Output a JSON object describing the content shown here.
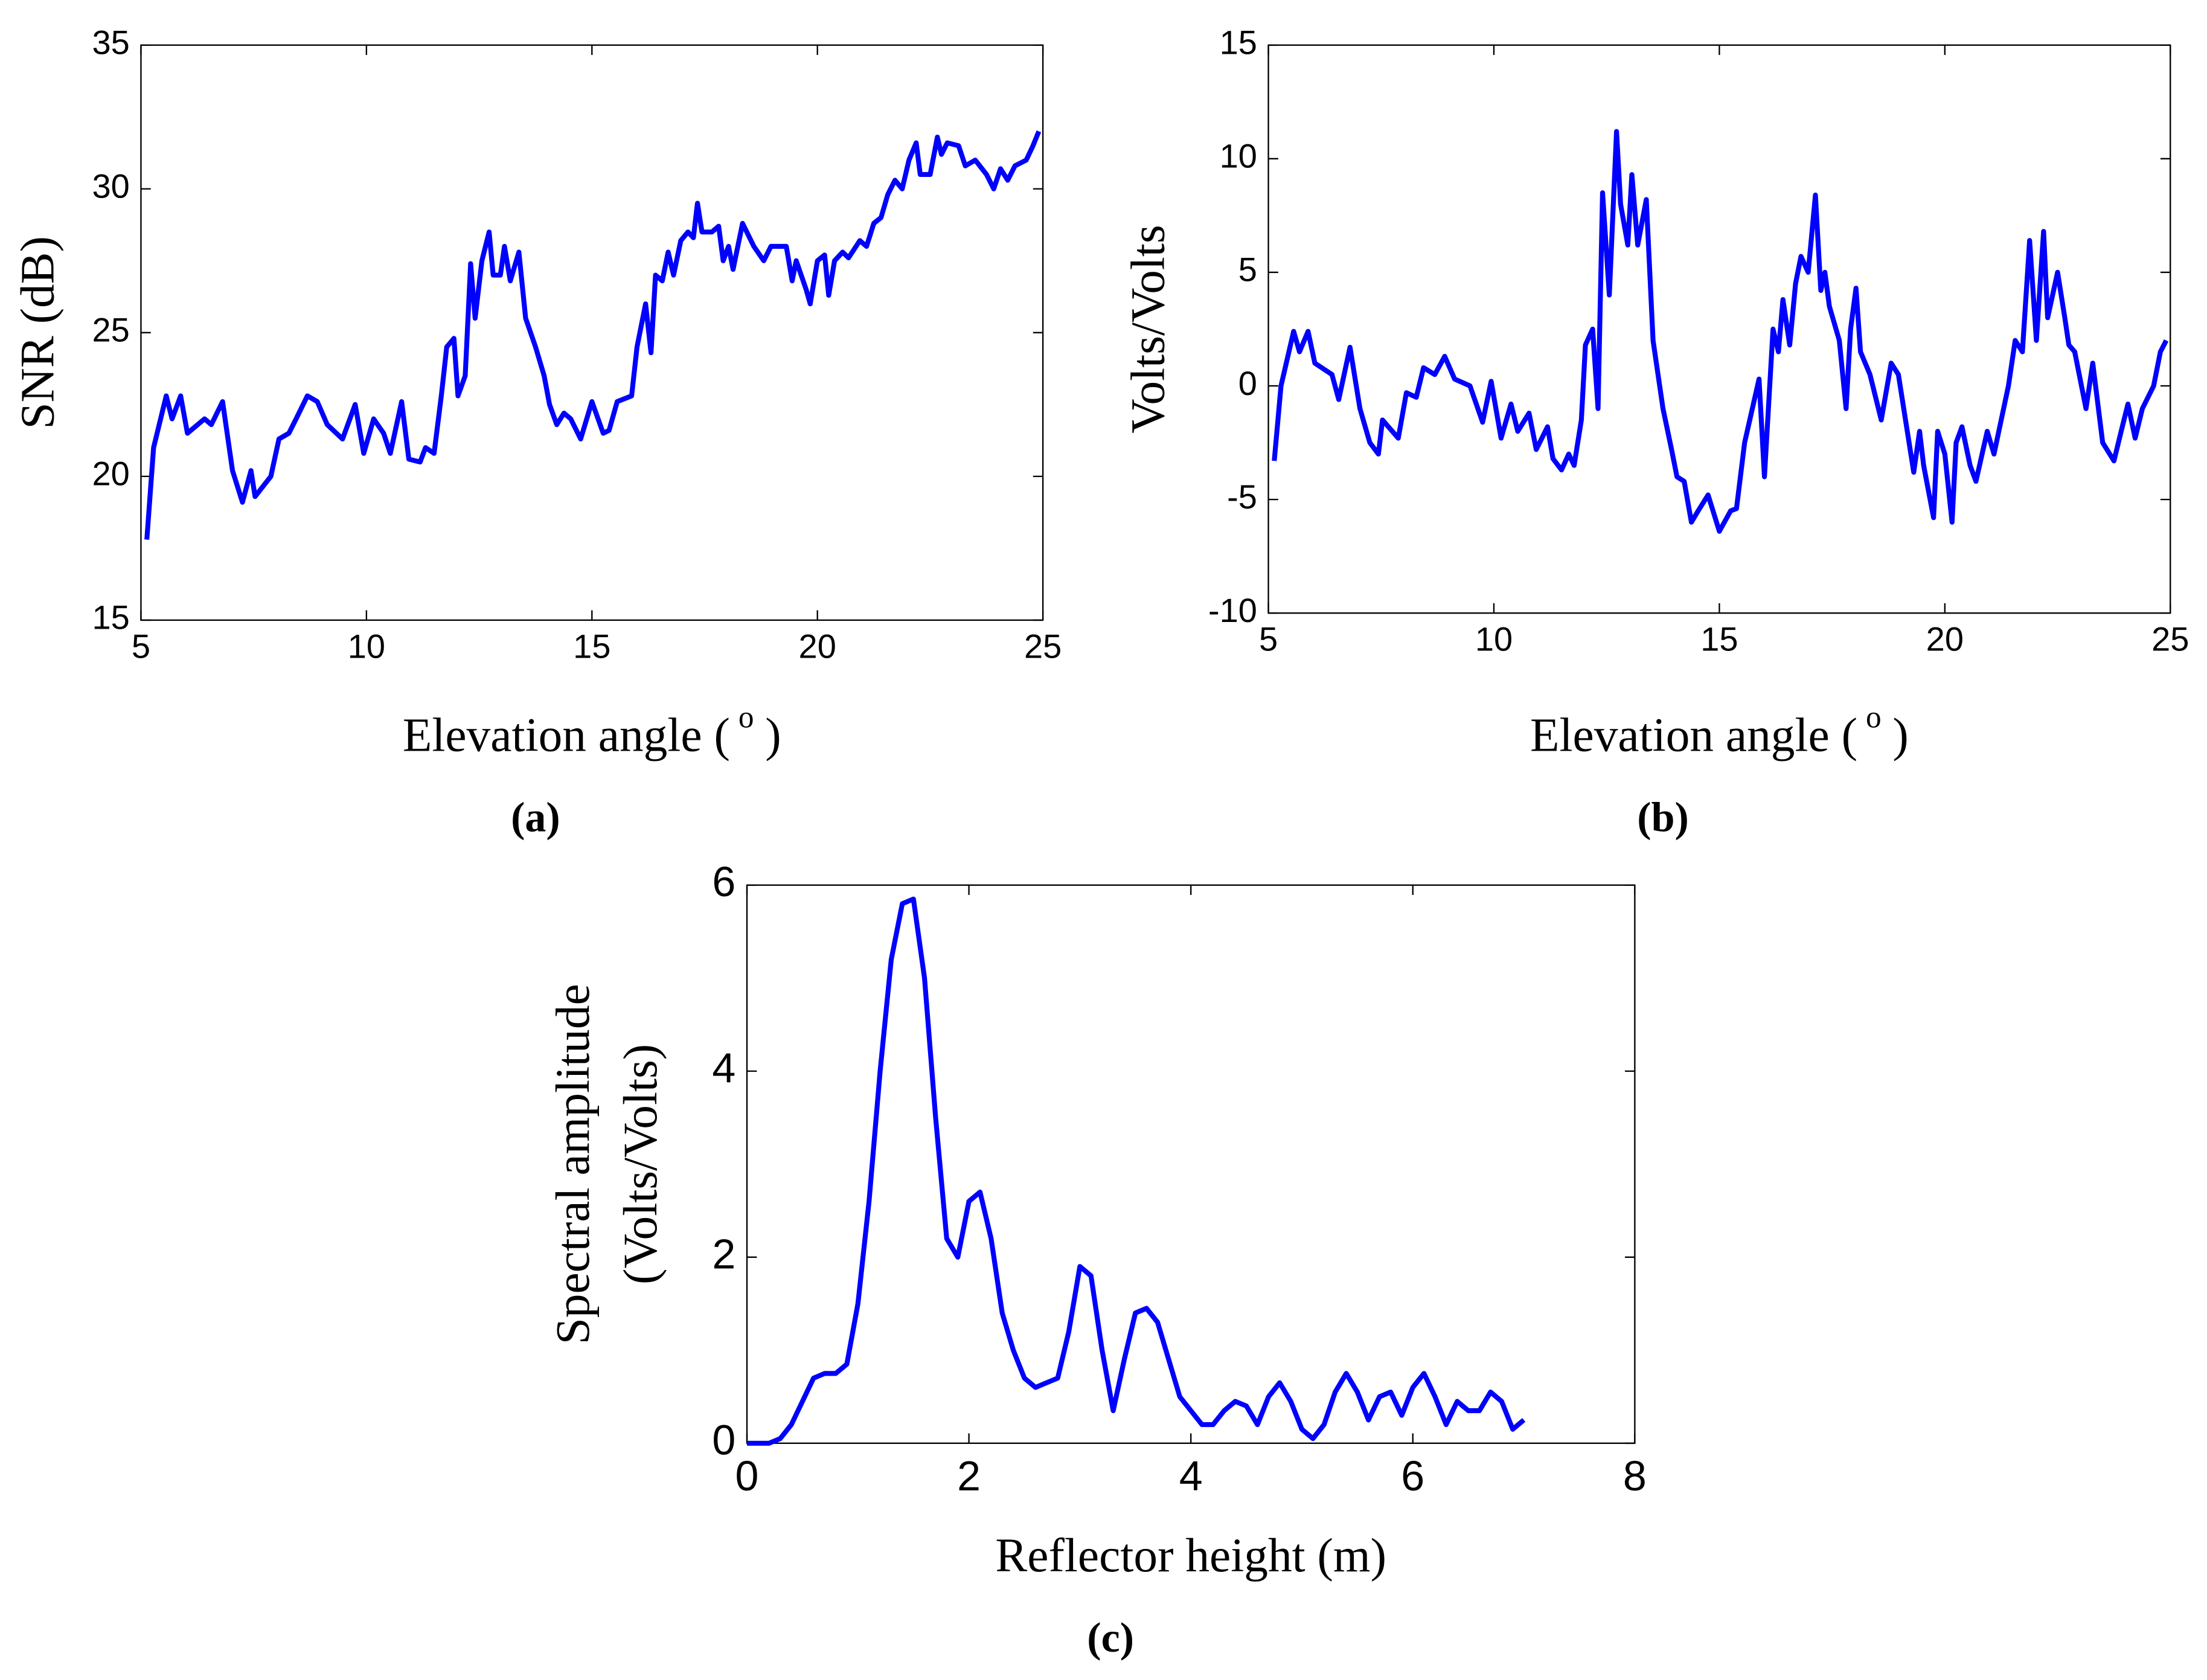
{
  "chart_data": [
    {
      "type": "line",
      "caption": "(a)",
      "y_label": "SNR (dB)",
      "x_label": [
        "Elevation angle (",
        "o",
        ")"
      ],
      "color": "#0000ff",
      "xlim": [
        5,
        25
      ],
      "xticks": [
        5,
        10,
        15,
        20,
        25
      ],
      "ylim": [
        15,
        35
      ],
      "yticks": [
        15,
        20,
        25,
        30,
        35
      ],
      "x": [
        5.13,
        5.28,
        5.56,
        5.69,
        5.88,
        6.03,
        6.41,
        6.56,
        6.81,
        7.03,
        7.25,
        7.44,
        7.53,
        7.88,
        8.06,
        8.28,
        8.44,
        8.69,
        8.91,
        9.13,
        9.47,
        9.75,
        9.94,
        10.16,
        10.38,
        10.53,
        10.78,
        10.94,
        11.19,
        11.31,
        11.5,
        11.66,
        11.78,
        11.94,
        12.03,
        12.19,
        12.31,
        12.41,
        12.56,
        12.72,
        12.81,
        12.97,
        13.06,
        13.19,
        13.38,
        13.53,
        13.75,
        13.94,
        14.06,
        14.22,
        14.38,
        14.53,
        14.75,
        15.0,
        15.25,
        15.38,
        15.56,
        15.88,
        16.0,
        16.19,
        16.31,
        16.41,
        16.56,
        16.69,
        16.81,
        16.97,
        17.13,
        17.25,
        17.34,
        17.44,
        17.66,
        17.81,
        17.91,
        18.03,
        18.13,
        18.34,
        18.59,
        18.81,
        18.97,
        19.31,
        19.44,
        19.53,
        19.75,
        19.84,
        20.0,
        20.16,
        20.25,
        20.38,
        20.56,
        20.69,
        20.94,
        21.09,
        21.25,
        21.41,
        21.56,
        21.72,
        21.88,
        22.03,
        22.19,
        22.28,
        22.5,
        22.66,
        22.75,
        22.88,
        23.13,
        23.28,
        23.5,
        23.75,
        23.91,
        24.06,
        24.22,
        24.38,
        24.63,
        24.78,
        24.91
      ],
      "values": [
        17.8,
        21,
        22.8,
        22,
        22.8,
        21.5,
        22,
        21.8,
        22.6,
        20.2,
        19.1,
        20.2,
        19.3,
        20,
        21.3,
        21.5,
        22,
        22.8,
        22.6,
        21.8,
        21.3,
        22.5,
        20.8,
        22,
        21.5,
        20.8,
        22.6,
        20.6,
        20.5,
        21,
        20.8,
        22.8,
        24.5,
        24.8,
        22.8,
        23.5,
        27.4,
        25.5,
        27.5,
        28.5,
        27,
        27,
        28,
        26.8,
        27.8,
        25.5,
        24.5,
        23.5,
        22.5,
        21.8,
        22.2,
        22,
        21.3,
        22.6,
        21.5,
        21.6,
        22.6,
        22.8,
        24.5,
        26,
        24.3,
        27,
        26.8,
        27.8,
        27,
        28.2,
        28.5,
        28.3,
        29.5,
        28.5,
        28.5,
        28.7,
        27.5,
        28,
        27.2,
        28.8,
        28,
        27.5,
        28,
        28,
        26.8,
        27.5,
        26.5,
        26,
        27.5,
        27.7,
        26.3,
        27.5,
        27.8,
        27.6,
        28.2,
        28,
        28.8,
        29,
        29.8,
        30.3,
        30,
        31,
        31.6,
        30.5,
        30.5,
        31.8,
        31.2,
        31.6,
        31.5,
        30.8,
        31,
        30.5,
        30,
        30.7,
        30.3,
        30.8,
        31,
        31.5,
        32
      ]
    },
    {
      "type": "line",
      "caption": "(b)",
      "y_label": "Volts/Volts",
      "x_label": [
        "Elevation angle (",
        "o",
        ")"
      ],
      "color": "#0000ff",
      "xlim": [
        5,
        25
      ],
      "xticks": [
        5,
        10,
        15,
        20,
        25
      ],
      "ylim": [
        -10,
        15
      ],
      "yticks": [
        -10,
        -5,
        0,
        5,
        10,
        15
      ],
      "x": [
        5.13,
        5.28,
        5.56,
        5.69,
        5.88,
        6.03,
        6.41,
        6.56,
        6.81,
        7.03,
        7.25,
        7.44,
        7.53,
        7.88,
        8.06,
        8.28,
        8.44,
        8.69,
        8.91,
        9.13,
        9.47,
        9.75,
        9.94,
        10.16,
        10.38,
        10.53,
        10.78,
        10.94,
        11.19,
        11.31,
        11.5,
        11.66,
        11.78,
        11.94,
        12.03,
        12.19,
        12.31,
        12.41,
        12.56,
        12.72,
        12.81,
        12.97,
        13.06,
        13.19,
        13.38,
        13.53,
        13.75,
        13.94,
        14.06,
        14.22,
        14.38,
        14.53,
        14.75,
        15.0,
        15.25,
        15.38,
        15.56,
        15.88,
        16.0,
        16.19,
        16.31,
        16.41,
        16.56,
        16.69,
        16.81,
        16.97,
        17.13,
        17.25,
        17.34,
        17.44,
        17.66,
        17.81,
        17.91,
        18.03,
        18.13,
        18.34,
        18.59,
        18.81,
        18.97,
        19.31,
        19.44,
        19.53,
        19.75,
        19.84,
        20.0,
        20.16,
        20.25,
        20.38,
        20.56,
        20.69,
        20.94,
        21.09,
        21.25,
        21.41,
        21.56,
        21.72,
        21.88,
        22.03,
        22.19,
        22.28,
        22.5,
        22.66,
        22.75,
        22.88,
        23.13,
        23.28,
        23.5,
        23.75,
        23.91,
        24.06,
        24.22,
        24.38,
        24.63,
        24.78,
        24.91
      ],
      "values": [
        -3.3,
        0,
        2.4,
        1.5,
        2.4,
        1,
        0.5,
        -0.6,
        1.7,
        -1,
        -2.5,
        -3,
        -1.5,
        -2.3,
        -0.3,
        -0.5,
        0.8,
        0.5,
        1.3,
        0.3,
        0,
        -1.6,
        0.2,
        -2.3,
        -0.8,
        -2,
        -1.2,
        -2.8,
        -1.8,
        -3.2,
        -3.7,
        -3,
        -3.5,
        -1.5,
        1.8,
        2.5,
        -1,
        8.5,
        4,
        11.2,
        8,
        6.2,
        9.3,
        6.2,
        8.2,
        2,
        -1,
        -2.8,
        -4,
        -4.2,
        -6,
        -5.5,
        -4.8,
        -6.4,
        -5.5,
        -5.4,
        -2.5,
        0.3,
        -4,
        2.5,
        1.5,
        3.8,
        1.8,
        4.5,
        5.7,
        5,
        8.4,
        4.2,
        5,
        3.5,
        2,
        -1,
        2.5,
        4.3,
        1.5,
        0.5,
        -1.5,
        1,
        0.5,
        -3.8,
        -2,
        -3.5,
        -5.8,
        -2,
        -3,
        -6,
        -2.5,
        -1.8,
        -3.5,
        -4.2,
        -2,
        -3,
        -1.5,
        0,
        2,
        1.5,
        6.4,
        2,
        6.8,
        3,
        5,
        3,
        1.8,
        1.5,
        -1,
        1,
        -2.5,
        -3.3,
        -2,
        -0.8,
        -2.3,
        -1,
        0,
        1.5,
        2
      ]
    },
    {
      "type": "line",
      "caption": "(c)",
      "y_label": [
        "Spectral amplitude",
        "(Volts/Volts)"
      ],
      "x_label": "Reflector height (m)",
      "color": "#0000ff",
      "xlim": [
        0,
        8
      ],
      "xticks": [
        0,
        2,
        4,
        6,
        8
      ],
      "ylim": [
        0,
        6
      ],
      "yticks": [
        0,
        2,
        4,
        6
      ],
      "x": [
        0,
        0.1,
        0.2,
        0.3,
        0.4,
        0.5,
        0.6,
        0.7,
        0.8,
        0.9,
        1.0,
        1.1,
        1.2,
        1.3,
        1.4,
        1.5,
        1.6,
        1.7,
        1.8,
        1.9,
        2.0,
        2.1,
        2.2,
        2.3,
        2.4,
        2.5,
        2.6,
        2.7,
        2.8,
        2.9,
        3.0,
        3.1,
        3.2,
        3.3,
        3.4,
        3.5,
        3.6,
        3.7,
        3.8,
        3.9,
        4.0,
        4.1,
        4.2,
        4.3,
        4.4,
        4.5,
        4.6,
        4.7,
        4.8,
        4.9,
        5.0,
        5.1,
        5.2,
        5.3,
        5.4,
        5.5,
        5.6,
        5.7,
        5.8,
        5.9,
        6.0,
        6.1,
        6.2,
        6.3,
        6.4,
        6.5,
        6.6,
        6.7,
        6.8,
        6.9,
        7.0
      ],
      "values": [
        0,
        0,
        0,
        0.05,
        0.2,
        0.45,
        0.7,
        0.75,
        0.75,
        0.85,
        1.5,
        2.6,
        4.0,
        5.2,
        5.8,
        5.85,
        5.0,
        3.5,
        2.2,
        2.0,
        2.6,
        2.7,
        2.2,
        1.4,
        1.0,
        0.7,
        0.6,
        0.65,
        0.7,
        1.2,
        1.9,
        1.8,
        1.0,
        0.35,
        0.9,
        1.4,
        1.45,
        1.3,
        0.9,
        0.5,
        0.35,
        0.2,
        0.2,
        0.35,
        0.45,
        0.4,
        0.2,
        0.5,
        0.65,
        0.45,
        0.15,
        0.05,
        0.2,
        0.55,
        0.75,
        0.55,
        0.25,
        0.5,
        0.55,
        0.3,
        0.6,
        0.75,
        0.5,
        0.2,
        0.45,
        0.35,
        0.35,
        0.55,
        0.45,
        0.15,
        0.25
      ]
    }
  ]
}
